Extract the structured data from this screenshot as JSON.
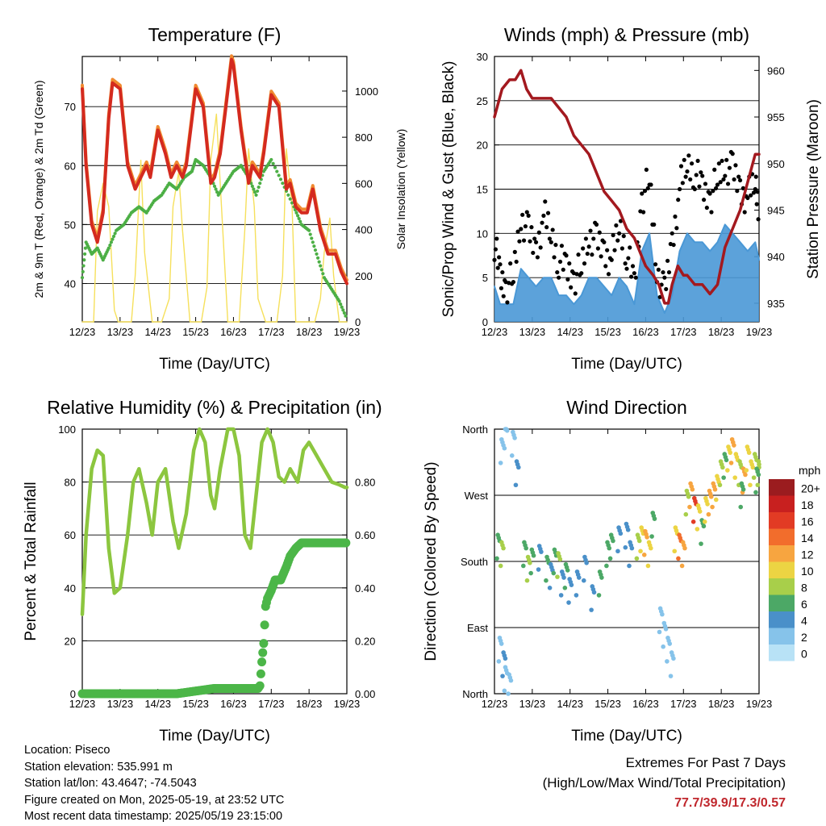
{
  "footer": {
    "location": "Location: Piseco",
    "elevation": "Station elevation: 535.991 m",
    "latlon": "Station lat/lon: 43.4647; -74.5043",
    "created": "Figure created on Mon, 2025-05-19, at 23:52 UTC",
    "recent": "Most recent data timestamp: 2025/05/19 23:15:00"
  },
  "extremes": {
    "heading": "Extremes For Past 7 Days",
    "subheading": "(High/Low/Max Wind/Total Precipitation)",
    "values": "77.7/39.9/17.3/0.57"
  },
  "colors": {
    "temp": "#d42a1f",
    "temp9m": "#f08a30",
    "dewpoint": "#4caf45",
    "solar": "#f6e05c",
    "gust": "#000000",
    "wind": "#4a98d6",
    "pressure": "#a3191f",
    "rh": "#8cc63f",
    "precip": "#4cb648"
  },
  "chart_data": [
    {
      "type": "line",
      "title": "Temperature (F)",
      "xlabel": "Time (Day/UTC)",
      "ylabel": "2m & 9m T (Red, Orange) & 2m Td (Green)",
      "y2label": "Solar Insolation (Yellow)",
      "xticks": [
        "12/23",
        "13/23",
        "14/23",
        "15/23",
        "16/23",
        "17/23",
        "18/23",
        "19/23"
      ],
      "xlim": [
        12,
        19
      ],
      "ylim": [
        33.5,
        78.5
      ],
      "yticks": [
        40,
        50,
        60,
        70
      ],
      "y2lim": [
        0,
        1150
      ],
      "y2ticks": [
        0,
        200,
        400,
        600,
        800,
        1000
      ],
      "series": [
        {
          "role": "temp_2m",
          "x": [
            12.0,
            12.1,
            12.25,
            12.4,
            12.55,
            12.7,
            12.8,
            13.0,
            13.2,
            13.4,
            13.55,
            13.7,
            13.8,
            14.0,
            14.2,
            14.35,
            14.5,
            14.65,
            14.75,
            15.0,
            15.2,
            15.4,
            15.5,
            15.65,
            15.8,
            15.95,
            16.0,
            16.2,
            16.4,
            16.5,
            16.7,
            16.8,
            17.0,
            17.2,
            17.4,
            17.5,
            17.65,
            17.8,
            17.95,
            18.1,
            18.3,
            18.5,
            18.7,
            18.85,
            19.0
          ],
          "y": [
            73,
            60,
            50,
            47,
            52,
            68,
            74,
            73,
            60,
            56,
            58,
            60,
            58,
            66,
            62,
            58,
            60,
            58,
            60,
            73,
            70,
            57,
            58,
            62,
            70,
            78,
            77,
            66,
            57,
            60,
            58,
            62,
            72,
            70,
            56,
            57,
            53,
            52,
            52,
            56,
            49,
            45,
            45,
            42,
            40
          ]
        },
        {
          "role": "dewpoint_2m",
          "x": [
            12.0,
            12.1,
            12.25,
            12.4,
            12.55,
            12.7,
            12.9,
            13.1,
            13.3,
            13.5,
            13.7,
            13.9,
            14.1,
            14.3,
            14.5,
            14.7,
            14.9,
            15.0,
            15.2,
            15.4,
            15.6,
            15.8,
            16.0,
            16.2,
            16.4,
            16.6,
            16.8,
            17.0,
            17.3,
            17.6,
            17.8,
            18.0,
            18.2,
            18.4,
            18.6,
            18.8,
            19.0
          ],
          "y": [
            41,
            47,
            45,
            46,
            44,
            46,
            49,
            50,
            52,
            53,
            52,
            54,
            55,
            57,
            56,
            58,
            59,
            61,
            60,
            58,
            55,
            57,
            59,
            60,
            58,
            55,
            59,
            61,
            57,
            53,
            50,
            49,
            45,
            41,
            39,
            37,
            34
          ]
        },
        {
          "role": "solar",
          "x": [
            12.0,
            12.15,
            12.3,
            12.4,
            12.55,
            12.7,
            12.85,
            12.95,
            13.15,
            13.3,
            13.4,
            13.55,
            13.65,
            13.85,
            13.95,
            14.1,
            14.3,
            14.4,
            14.55,
            14.65,
            14.85,
            14.95,
            15.15,
            15.3,
            15.4,
            15.55,
            15.65,
            15.85,
            15.95,
            16.15,
            16.3,
            16.4,
            16.55,
            16.65,
            16.85,
            16.95,
            17.15,
            17.3,
            17.4,
            17.55,
            17.65,
            17.85,
            17.95,
            18.15,
            18.3,
            18.4,
            18.55,
            18.65,
            18.8,
            18.95,
            19.0
          ],
          "y": [
            0,
            0,
            0,
            480,
            600,
            500,
            50,
            0,
            0,
            0,
            200,
            700,
            300,
            0,
            0,
            0,
            100,
            500,
            650,
            400,
            0,
            0,
            0,
            150,
            700,
            900,
            600,
            0,
            0,
            0,
            400,
            750,
            500,
            100,
            0,
            0,
            0,
            200,
            750,
            500,
            0,
            0,
            0,
            0,
            100,
            300,
            450,
            200,
            0,
            0,
            0
          ]
        }
      ]
    },
    {
      "type": "line",
      "title": "Winds (mph) & Pressure (mb)",
      "xlabel": "Time (Day/UTC)",
      "ylabel": "Sonic/Prop Wind & Gust (Blue, Black)",
      "y2label": "Station Pressure (Maroon)",
      "xticks": [
        "12/23",
        "13/23",
        "14/23",
        "15/23",
        "16/23",
        "17/23",
        "18/23",
        "19/23"
      ],
      "xlim": [
        12,
        19
      ],
      "ylim": [
        0,
        30
      ],
      "yticks": [
        0,
        5,
        10,
        15,
        20,
        25,
        30
      ],
      "y2lim": [
        933,
        961.5
      ],
      "y2ticks": [
        935,
        940,
        945,
        950,
        955,
        960
      ],
      "series": [
        {
          "role": "gust",
          "x": [
            12.0,
            12.15,
            12.3,
            12.5,
            12.7,
            12.9,
            13.1,
            13.3,
            13.5,
            13.7,
            13.9,
            14.1,
            14.3,
            14.5,
            14.7,
            14.9,
            15.1,
            15.3,
            15.5,
            15.7,
            15.9,
            16.1,
            16.3,
            16.5,
            16.7,
            16.9,
            17.1,
            17.3,
            17.5,
            17.7,
            17.9,
            18.1,
            18.3,
            18.5,
            18.7,
            18.9,
            19.0
          ],
          "y": [
            9,
            5,
            4,
            5,
            12,
            10,
            8,
            12,
            10,
            7,
            6,
            5,
            6,
            10,
            9,
            8,
            7,
            11,
            8,
            4,
            14,
            16,
            6,
            3,
            9,
            15,
            18,
            17,
            15,
            14,
            16,
            18,
            17,
            15,
            14,
            16,
            13
          ]
        },
        {
          "role": "wind",
          "x": [
            12.0,
            12.15,
            12.3,
            12.5,
            12.7,
            12.9,
            13.1,
            13.3,
            13.5,
            13.7,
            13.9,
            14.1,
            14.3,
            14.5,
            14.7,
            14.9,
            15.1,
            15.3,
            15.5,
            15.7,
            15.9,
            16.1,
            16.3,
            16.5,
            16.7,
            16.9,
            17.1,
            17.3,
            17.5,
            17.7,
            17.9,
            18.1,
            18.3,
            18.5,
            18.7,
            18.9,
            19.0
          ],
          "y": [
            4,
            2,
            2,
            2,
            6,
            5,
            4,
            5,
            5,
            3,
            3,
            2,
            3,
            5,
            5,
            4,
            3,
            5,
            4,
            2,
            8,
            10,
            3,
            1,
            3,
            8,
            10,
            9,
            9,
            8,
            9,
            11,
            10,
            9,
            8,
            9,
            7
          ]
        },
        {
          "role": "pressure",
          "x": [
            12.0,
            12.2,
            12.4,
            12.55,
            12.7,
            12.85,
            13.0,
            13.2,
            13.35,
            13.5,
            13.7,
            13.9,
            14.1,
            14.3,
            14.5,
            14.7,
            14.9,
            15.1,
            15.3,
            15.5,
            15.7,
            15.9,
            16.0,
            16.2,
            16.35,
            16.5,
            16.6,
            16.7,
            16.85,
            17.0,
            17.1,
            17.3,
            17.5,
            17.7,
            17.9,
            18.1,
            18.3,
            18.5,
            18.7,
            18.9,
            19.0
          ],
          "y": [
            955,
            958,
            959,
            959,
            960,
            958,
            957,
            957,
            957,
            957,
            956,
            955,
            953,
            952,
            951,
            949,
            947,
            946,
            945,
            943,
            942,
            940,
            939,
            938,
            937,
            935,
            935,
            937,
            939,
            938,
            938,
            937,
            937,
            936,
            937,
            941,
            943,
            945,
            948,
            951,
            951
          ]
        }
      ]
    },
    {
      "type": "line",
      "title": "Relative Humidity (%) & Precipitation (in)",
      "xlabel": "Time (Day/UTC)",
      "ylabel": "Percent & Total Rainfall",
      "xticks": [
        "12/23",
        "13/23",
        "14/23",
        "15/23",
        "16/23",
        "17/23",
        "18/23",
        "19/23"
      ],
      "xlim": [
        12,
        19
      ],
      "ylim": [
        0,
        100
      ],
      "yticks": [
        0,
        20,
        40,
        60,
        80,
        100
      ],
      "y2lim": [
        0,
        1.0
      ],
      "y2ticks": [
        "0.00",
        "0.20",
        "0.40",
        "0.60",
        "0.80"
      ],
      "series": [
        {
          "role": "rh",
          "x": [
            12.0,
            12.1,
            12.25,
            12.4,
            12.55,
            12.7,
            12.85,
            13.0,
            13.2,
            13.35,
            13.5,
            13.7,
            13.85,
            14.0,
            14.2,
            14.4,
            14.55,
            14.75,
            14.95,
            15.1,
            15.25,
            15.4,
            15.5,
            15.65,
            15.85,
            16.0,
            16.15,
            16.3,
            16.45,
            16.6,
            16.75,
            16.9,
            17.05,
            17.2,
            17.35,
            17.5,
            17.7,
            17.85,
            18.0,
            18.2,
            18.4,
            18.6,
            18.8,
            18.95,
            19.0
          ],
          "y": [
            30,
            60,
            85,
            92,
            90,
            55,
            38,
            40,
            60,
            80,
            85,
            72,
            60,
            80,
            85,
            65,
            55,
            68,
            92,
            100,
            95,
            75,
            70,
            85,
            100,
            100,
            90,
            60,
            55,
            75,
            95,
            100,
            95,
            82,
            80,
            85,
            80,
            92,
            95,
            90,
            85,
            80,
            79,
            78,
            78
          ]
        },
        {
          "role": "precip",
          "x": [
            12.0,
            12.5,
            13.0,
            13.5,
            14.0,
            14.5,
            15.0,
            15.5,
            16.0,
            16.5,
            16.65,
            16.7,
            16.75,
            16.8,
            16.85,
            16.9,
            17.0,
            17.1,
            17.25,
            17.4,
            17.5,
            17.65,
            17.8,
            17.95,
            18.1,
            18.3,
            18.5,
            18.8,
            19.0
          ],
          "y": [
            0.0,
            0.0,
            0.0,
            0.0,
            0.0,
            0.0,
            0.01,
            0.02,
            0.02,
            0.02,
            0.02,
            0.03,
            0.12,
            0.19,
            0.33,
            0.36,
            0.39,
            0.43,
            0.43,
            0.48,
            0.52,
            0.55,
            0.57,
            0.57,
            0.57,
            0.57,
            0.57,
            0.57,
            0.57
          ]
        }
      ]
    },
    {
      "type": "scatter",
      "title": "Wind Direction",
      "xlabel": "Time (Day/UTC)",
      "ylabel": "Direction (Colored By Speed)",
      "xticks": [
        "12/23",
        "13/23",
        "14/23",
        "15/23",
        "16/23",
        "17/23",
        "18/23",
        "19/23"
      ],
      "xlim": [
        12,
        19
      ],
      "ylim": [
        0,
        360
      ],
      "yticks": [
        "North",
        "East",
        "South",
        "West",
        "North"
      ],
      "legend": {
        "title": "mph",
        "labels": [
          "20+",
          "18",
          "16",
          "14",
          "12",
          "10",
          "8",
          "6",
          "4",
          "2",
          "0"
        ],
        "placement": "right"
      },
      "points": [
        [
          12.1,
          200,
          6
        ],
        [
          12.2,
          190,
          8
        ],
        [
          12.15,
          60,
          2
        ],
        [
          12.25,
          40,
          3
        ],
        [
          12.3,
          20,
          2
        ],
        [
          12.4,
          10,
          2
        ],
        [
          12.2,
          330,
          1
        ],
        [
          12.3,
          350,
          1
        ],
        [
          12.5,
          340,
          2
        ],
        [
          12.6,
          300,
          3
        ],
        [
          12.8,
          190,
          6
        ],
        [
          12.9,
          170,
          8
        ],
        [
          13.0,
          180,
          5
        ],
        [
          13.2,
          185,
          4
        ],
        [
          13.4,
          170,
          6
        ],
        [
          13.5,
          160,
          4
        ],
        [
          13.6,
          180,
          5
        ],
        [
          13.7,
          175,
          7
        ],
        [
          13.8,
          150,
          4
        ],
        [
          13.9,
          160,
          6
        ],
        [
          14.0,
          140,
          4
        ],
        [
          14.2,
          150,
          3
        ],
        [
          14.4,
          170,
          4
        ],
        [
          14.6,
          130,
          3
        ],
        [
          14.8,
          150,
          5
        ],
        [
          15.0,
          190,
          6
        ],
        [
          15.1,
          200,
          5
        ],
        [
          15.3,
          210,
          4
        ],
        [
          15.5,
          215,
          3
        ],
        [
          15.6,
          190,
          4
        ],
        [
          15.8,
          200,
          8
        ],
        [
          15.9,
          210,
          10
        ],
        [
          16.0,
          205,
          12
        ],
        [
          16.1,
          190,
          9
        ],
        [
          16.2,
          230,
          5
        ],
        [
          16.4,
          100,
          2
        ],
        [
          16.5,
          80,
          2
        ],
        [
          16.6,
          60,
          1
        ],
        [
          16.7,
          40,
          1
        ],
        [
          16.8,
          210,
          10
        ],
        [
          16.9,
          200,
          14
        ],
        [
          17.0,
          190,
          12
        ],
        [
          17.1,
          260,
          8
        ],
        [
          17.2,
          270,
          12
        ],
        [
          17.3,
          250,
          16
        ],
        [
          17.4,
          240,
          10
        ],
        [
          17.5,
          220,
          6
        ],
        [
          17.6,
          250,
          9
        ],
        [
          17.7,
          260,
          11
        ],
        [
          17.8,
          270,
          12
        ],
        [
          17.9,
          280,
          10
        ],
        [
          18.0,
          300,
          8
        ],
        [
          18.1,
          310,
          6
        ],
        [
          18.2,
          320,
          9
        ],
        [
          18.3,
          330,
          11
        ],
        [
          18.4,
          310,
          10
        ],
        [
          18.5,
          300,
          8
        ],
        [
          18.6,
          290,
          12
        ],
        [
          18.7,
          320,
          9
        ],
        [
          18.8,
          300,
          10
        ],
        [
          18.9,
          310,
          8
        ],
        [
          19.0,
          300,
          7
        ],
        [
          18.95,
          290,
          6
        ],
        [
          18.55,
          270,
          5
        ]
      ]
    }
  ]
}
